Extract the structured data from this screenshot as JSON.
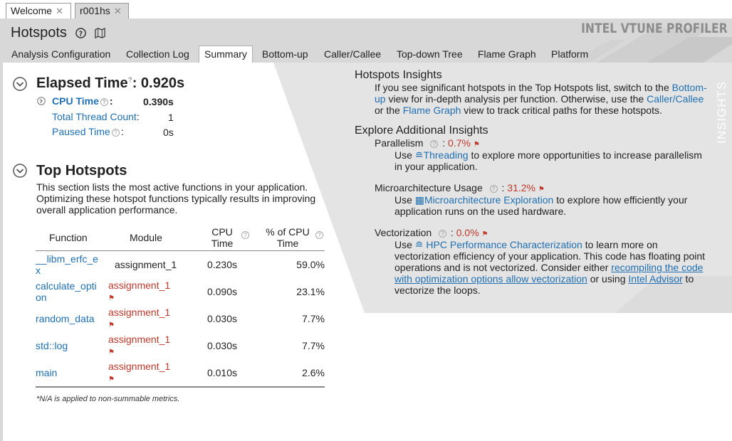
{
  "doc_tabs": [
    {
      "label": "Welcome"
    },
    {
      "label": "r001hs"
    }
  ],
  "header": {
    "title": "Hotspots",
    "brand": "INTEL VTUNE PROFILER"
  },
  "view_tabs": [
    {
      "label": "Analysis Configuration"
    },
    {
      "label": "Collection Log"
    },
    {
      "label": "Summary",
      "active": true
    },
    {
      "label": "Bottom-up"
    },
    {
      "label": "Caller/Callee"
    },
    {
      "label": "Top-down Tree"
    },
    {
      "label": "Flame Graph"
    },
    {
      "label": "Platform"
    }
  ],
  "elapsed": {
    "label": "Elapsed Time",
    "value": ": 0.920s",
    "cpu_label": "CPU Time",
    "cpu_value": "0.390s",
    "thread_label": "Total Thread Count",
    "thread_value": "1",
    "paused_label": "Paused Time",
    "paused_value": "0s"
  },
  "top_hotspots": {
    "title": "Top Hotspots",
    "desc1": "This section lists the most active functions in your application.",
    "desc2": "Optimizing these hotspot functions typically results in improving",
    "desc3": "overall application performance.",
    "columns": [
      "Function",
      "Module",
      "CPU",
      "Time",
      "% of CPU",
      "Time"
    ],
    "rows": [
      {
        "fn1": "__libm_erfc_e",
        "fn2": "x",
        "module": "assignment_1",
        "warn": false,
        "cpu": "0.230s",
        "pct": "59.0%"
      },
      {
        "fn1": "calculate_opti",
        "fn2": "on",
        "module": "assignment_1",
        "warn": true,
        "cpu": "0.090s",
        "pct": "23.1%"
      },
      {
        "fn1": "random_data",
        "fn2": "",
        "module": "assignment_1",
        "warn": true,
        "cpu": "0.030s",
        "pct": "7.7%"
      },
      {
        "fn1": "std::log",
        "fn2": "",
        "module": "assignment_1",
        "warn": true,
        "cpu": "0.030s",
        "pct": "7.7%"
      },
      {
        "fn1": "main",
        "fn2": "",
        "module": "assignment_1",
        "warn": true,
        "cpu": "0.010s",
        "pct": "2.6%"
      }
    ],
    "footnote": "*N/A is applied to non-summable metrics."
  },
  "insights": {
    "vertical_label": "INSIGHTS",
    "hotspots_title": "Hotspots Insights",
    "hs_l1a": "If you see significant hotspots in the Top Hotspots list, switch to the ",
    "hs_l1b": "Bottom-",
    "hs_l2a": "up",
    "hs_l2b": " view for in-depth analysis per function. Otherwise, use the ",
    "hs_l2c": "Caller/Callee",
    "hs_l3a": "or the ",
    "hs_l3b": "Flame Graph",
    "hs_l3c": " view to track critical paths for these hotspots.",
    "explore_title": "Explore Additional Insights",
    "parallelism_label": "Parallelism",
    "parallelism_value": "0.7%",
    "par_l1a": "Use ",
    "par_l1b": "Threading",
    "par_l1c": " to explore more opportunities to increase parallelism",
    "par_l2": "in your application.",
    "micro_label": "Microarchitecture Usage",
    "micro_value": "31.2%",
    "mic_l1a": "Use ",
    "mic_l1b": "Microarchitecture Exploration",
    "mic_l1c": " to explore how efficiently your",
    "mic_l2": "application runs on the used hardware.",
    "vec_label": "Vectorization",
    "vec_value": "0.0%",
    "vec_l1a": "Use ",
    "vec_l1b": "HPC Performance Characterization",
    "vec_l1c": " to learn more on",
    "vec_l2": "vectorization efficiency of your application. This code has floating point",
    "vec_l3a": "operations and is not vectorized. Consider either ",
    "vec_l3b": "recompiling the code",
    "vec_l4a": "with optimization options allow vectorization",
    "vec_l4b": " or using ",
    "vec_l4c": "Intel Advisor",
    "vec_l4d": " to",
    "vec_l5": "vectorize the loops."
  }
}
